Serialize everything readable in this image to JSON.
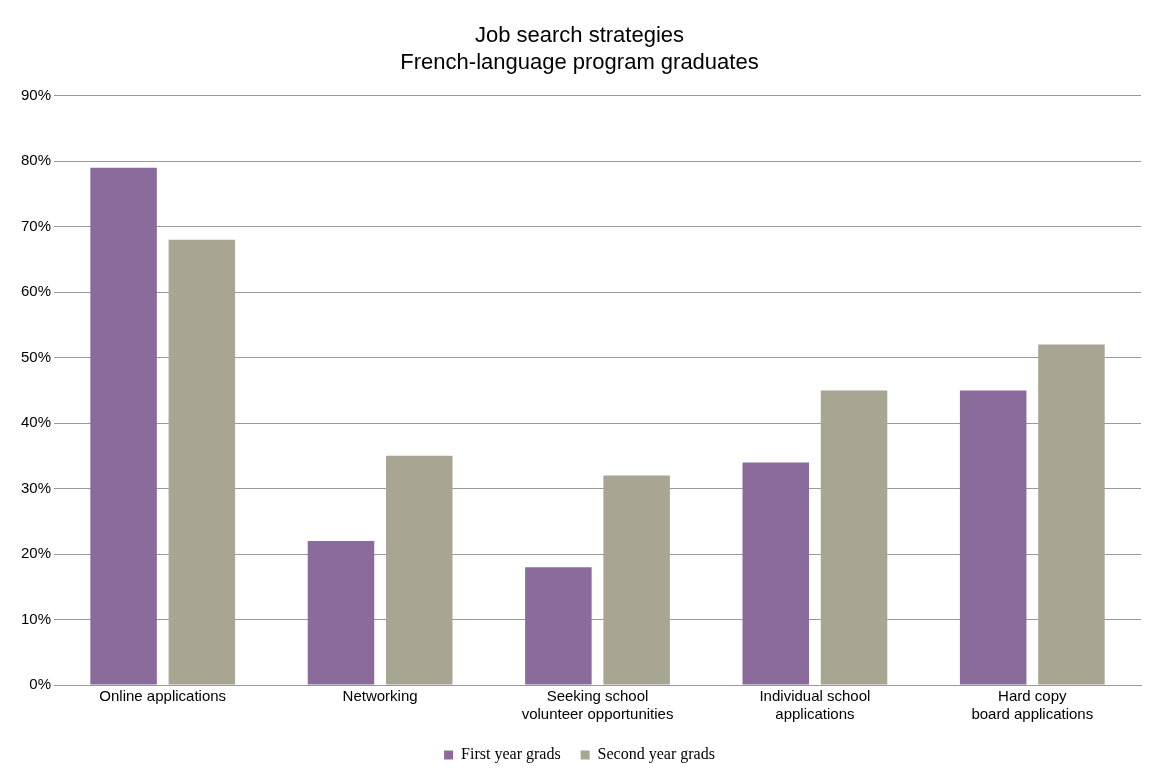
{
  "chart_data": {
    "type": "bar",
    "title": "Job search strategies",
    "subtitle": "French-language program graduates",
    "categories": [
      "Online applications",
      "Networking",
      "Seeking school\nvolunteer opportunities",
      "Individual school\napplications",
      "Hard copy\nboard applications"
    ],
    "series": [
      {
        "name": "First year grads",
        "color": "#8a6b9c",
        "values": [
          79,
          22,
          18,
          34,
          45
        ]
      },
      {
        "name": "Second year grads",
        "color": "#a8a693",
        "values": [
          68,
          35,
          32,
          45,
          52
        ]
      }
    ],
    "ylim": [
      0,
      90
    ],
    "yticks": [
      {
        "value": 0,
        "label": "0%"
      },
      {
        "value": 10,
        "label": "10%"
      },
      {
        "value": 20,
        "label": "20%"
      },
      {
        "value": 30,
        "label": "30%"
      },
      {
        "value": 40,
        "label": "40%"
      },
      {
        "value": 50,
        "label": "50%"
      },
      {
        "value": 60,
        "label": "60%"
      },
      {
        "value": 70,
        "label": "70%"
      },
      {
        "value": 80,
        "label": "80%"
      },
      {
        "value": 90,
        "label": "90%"
      }
    ],
    "grid": "y",
    "legend": "bottom"
  }
}
